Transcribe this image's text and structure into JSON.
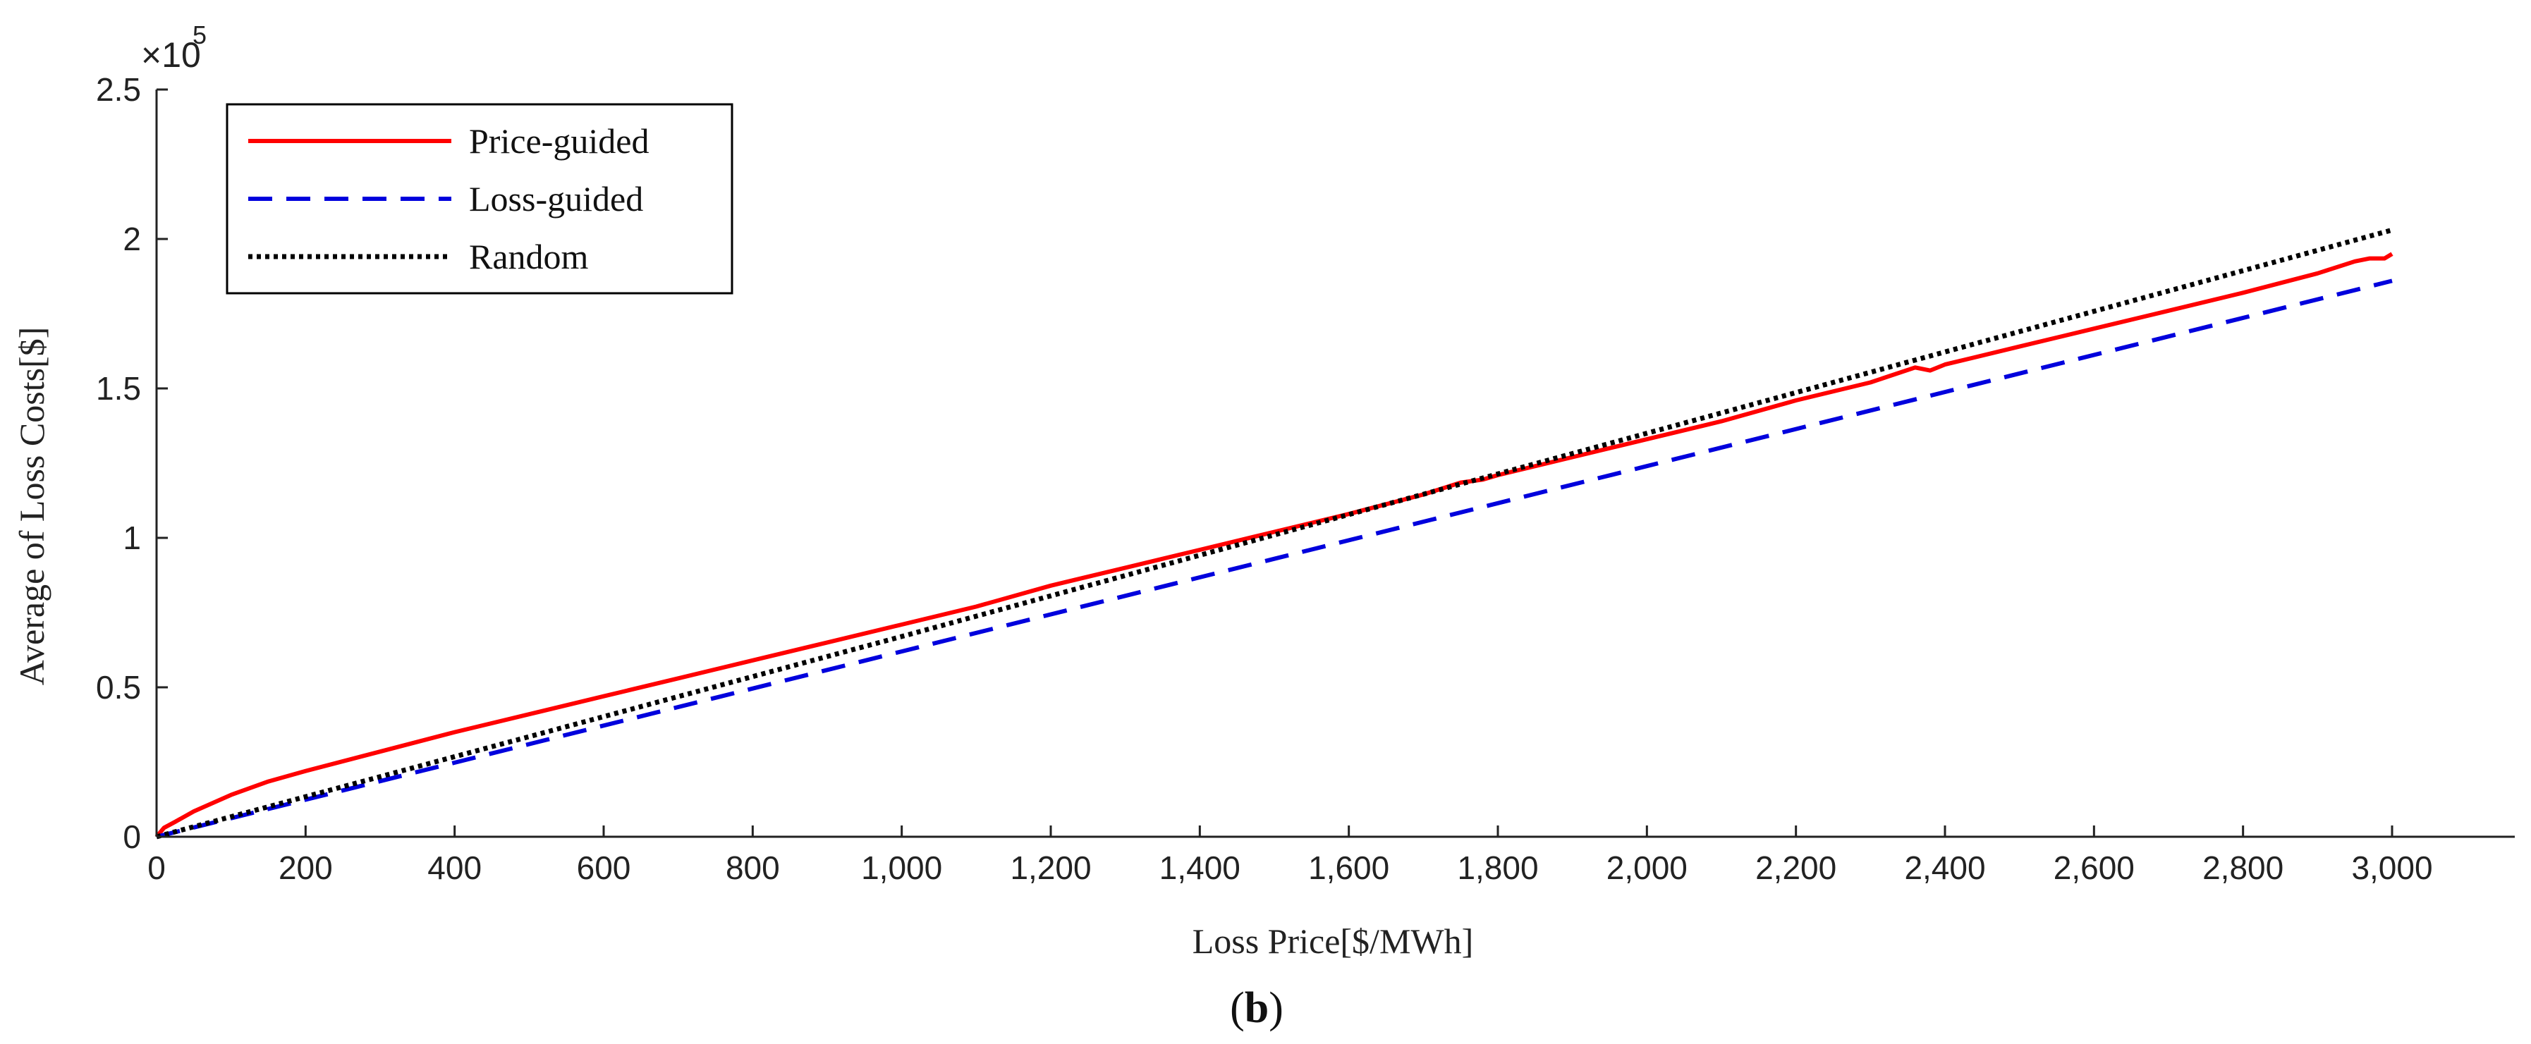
{
  "chart_data": {
    "type": "line",
    "title": "",
    "xlabel": "Loss Price[$/MWh]",
    "ylabel": "Average of Loss Costs[$]",
    "xlim": [
      0,
      3100
    ],
    "ylim": [
      0,
      250000
    ],
    "y_exponent_label": {
      "base": "×10",
      "exponent": "5"
    },
    "x_ticks": [
      0,
      200,
      400,
      600,
      800,
      1000,
      1200,
      1400,
      1600,
      1800,
      2000,
      2200,
      2400,
      2600,
      2800,
      3000
    ],
    "x_tick_labels": [
      "0",
      "200",
      "400",
      "600",
      "800",
      "1,000",
      "1,200",
      "1,400",
      "1,600",
      "1,800",
      "2,000",
      "2,200",
      "2,400",
      "2,600",
      "2,800",
      "3,000"
    ],
    "y_ticks": [
      0,
      50000,
      100000,
      150000,
      200000,
      250000
    ],
    "y_tick_labels": [
      "0",
      "0.5",
      "1",
      "1.5",
      "2",
      "2.5"
    ],
    "grid": false,
    "legend_position": "top-left",
    "series": [
      {
        "name": "Price-guided",
        "color": "#ff0000",
        "style": "solid",
        "x": [
          0,
          10,
          25,
          50,
          100,
          150,
          200,
          300,
          400,
          500,
          600,
          700,
          800,
          900,
          1000,
          1100,
          1200,
          1300,
          1400,
          1500,
          1600,
          1700,
          1750,
          1780,
          1800,
          1900,
          2000,
          2100,
          2200,
          2300,
          2360,
          2380,
          2400,
          2500,
          2600,
          2700,
          2800,
          2900,
          2950,
          2970,
          2990,
          3000
        ],
        "values": [
          0,
          3000,
          5000,
          8500,
          14000,
          18500,
          22000,
          28500,
          35000,
          41000,
          47000,
          53000,
          59000,
          65000,
          71000,
          77000,
          84000,
          90000,
          96000,
          102000,
          108000,
          114500,
          118500,
          119500,
          121000,
          127000,
          133000,
          139000,
          146000,
          152000,
          157000,
          156000,
          158000,
          164000,
          170000,
          176000,
          182000,
          188500,
          192500,
          193500,
          193500,
          195000
        ]
      },
      {
        "name": "Loss-guided",
        "color": "#0000dd",
        "style": "dashed",
        "x": [
          0,
          500,
          1000,
          1500,
          2000,
          2500,
          3000
        ],
        "values": [
          0,
          31000,
          62000,
          93000,
          124000,
          155000,
          186000
        ]
      },
      {
        "name": "Random",
        "color": "#000000",
        "style": "dotted",
        "x": [
          0,
          500,
          1000,
          1500,
          2000,
          2500,
          3000
        ],
        "values": [
          0,
          33500,
          67000,
          101000,
          135000,
          169000,
          203000
        ]
      }
    ]
  },
  "caption": "(b)",
  "caption_paren_open": "(",
  "caption_letter": "b",
  "caption_paren_close": ")"
}
